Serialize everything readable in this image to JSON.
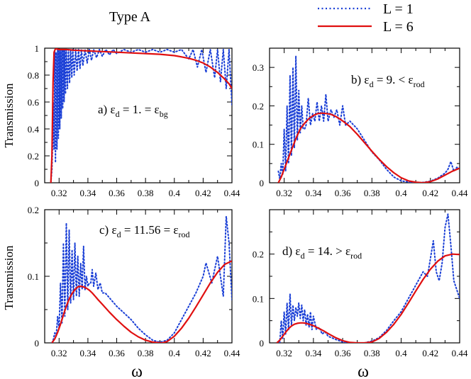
{
  "figure": {
    "title": "Type A",
    "ylabel": "Transmission",
    "xlabel": "ω",
    "legend": {
      "placement": "top-right",
      "entries": [
        {
          "label": "L = 1",
          "color": "#1a3fd6",
          "style": "dotted"
        },
        {
          "label": "L = 6",
          "color": "#e01010",
          "style": "solid"
        }
      ]
    }
  },
  "chart_data": [
    {
      "id": "a",
      "type": "line",
      "annotation": {
        "prefix": "a) ε",
        "sub1": "d",
        "mid": " = 1. = ε",
        "sub2": "bg"
      },
      "xlim": [
        0.31,
        0.44
      ],
      "ylim": [
        0,
        1
      ],
      "xticks": [
        0.32,
        0.34,
        0.36,
        0.38,
        0.4,
        0.42,
        0.44
      ],
      "yticks": [
        0,
        0.2,
        0.4,
        0.6,
        0.8,
        1
      ],
      "ytick_labels": [
        "0",
        "0.2",
        "0.4",
        "0.6",
        "0.8",
        "1"
      ],
      "xtick_labels": [
        "0.32",
        "0.34",
        "0.36",
        "0.38",
        "0.4",
        "0.42",
        "0.44"
      ],
      "series": [
        {
          "name": "L = 1",
          "color": "#1a3fd6",
          "style": "dotted",
          "x": [
            0.3143,
            0.315,
            0.3155,
            0.316,
            0.3165,
            0.317,
            0.3175,
            0.318,
            0.3185,
            0.319,
            0.3195,
            0.32,
            0.3205,
            0.321,
            0.3215,
            0.322,
            0.3225,
            0.323,
            0.3235,
            0.324,
            0.3245,
            0.325,
            0.3258,
            0.3265,
            0.3273,
            0.328,
            0.3288,
            0.3295,
            0.3305,
            0.3315,
            0.3325,
            0.3335,
            0.3345,
            0.3355,
            0.3365,
            0.338,
            0.3395,
            0.341,
            0.3425,
            0.344,
            0.346,
            0.348,
            0.35,
            0.3525,
            0.355,
            0.3575,
            0.36,
            0.365,
            0.37,
            0.375,
            0.38,
            0.385,
            0.39,
            0.395,
            0.4,
            0.405,
            0.41,
            0.413,
            0.416,
            0.419,
            0.422,
            0.425,
            0.428,
            0.43,
            0.432,
            0.434,
            0.436,
            0.438,
            0.44
          ],
          "y": [
            0,
            0.1,
            0.3,
            0.6,
            0.25,
            0.98,
            0.15,
            0.97,
            0.25,
            0.99,
            0.33,
            0.98,
            0.4,
            0.99,
            0.48,
            0.99,
            0.55,
            0.99,
            0.6,
            0.99,
            0.66,
            0.99,
            0.7,
            0.99,
            0.74,
            0.99,
            0.78,
            0.99,
            0.8,
            0.99,
            0.83,
            0.99,
            0.85,
            0.99,
            0.87,
            0.99,
            0.89,
            0.99,
            0.91,
            0.99,
            0.93,
            0.99,
            0.94,
            0.99,
            0.95,
            0.99,
            0.96,
            0.99,
            0.97,
            0.99,
            0.97,
            0.99,
            0.97,
            0.99,
            0.97,
            0.99,
            0.92,
            0.99,
            0.86,
            0.99,
            0.82,
            0.99,
            0.78,
            0.99,
            0.75,
            0.99,
            0.7,
            0.99,
            0.58
          ]
        },
        {
          "name": "L = 6",
          "color": "#e01010",
          "style": "solid",
          "x": [
            0.3143,
            0.315,
            0.3158,
            0.3165,
            0.3172,
            0.318,
            0.32,
            0.325,
            0.33,
            0.34,
            0.35,
            0.36,
            0.37,
            0.38,
            0.39,
            0.4,
            0.405,
            0.41,
            0.415,
            0.42,
            0.425,
            0.43,
            0.435,
            0.438,
            0.44
          ],
          "y": [
            0,
            0.2,
            0.75,
            0.97,
            0.99,
            0.995,
            0.99,
            0.99,
            0.985,
            0.98,
            0.975,
            0.97,
            0.965,
            0.96,
            0.955,
            0.945,
            0.935,
            0.925,
            0.91,
            0.89,
            0.86,
            0.82,
            0.77,
            0.735,
            0.7
          ]
        }
      ]
    },
    {
      "id": "b",
      "type": "line",
      "annotation": {
        "prefix": "b) ε",
        "sub1": "d",
        "mid": " = 9. < ε",
        "sub2": "rod"
      },
      "xlim": [
        0.31,
        0.44
      ],
      "ylim": [
        0,
        0.35
      ],
      "xticks": [
        0.32,
        0.34,
        0.36,
        0.38,
        0.4,
        0.42,
        0.44
      ],
      "yticks": [
        0,
        0.1,
        0.2,
        0.3
      ],
      "ytick_labels": [
        "0",
        "0.1",
        "0.2",
        "0.3"
      ],
      "xtick_labels": [
        "0.32",
        "0.34",
        "0.36",
        "0.38",
        "0.4",
        "0.42",
        "0.44"
      ],
      "series": [
        {
          "name": "L = 1",
          "color": "#1a3fd6",
          "style": "dotted",
          "x": [
            0.316,
            0.317,
            0.318,
            0.319,
            0.32,
            0.321,
            0.322,
            0.323,
            0.324,
            0.325,
            0.326,
            0.327,
            0.328,
            0.329,
            0.33,
            0.331,
            0.332,
            0.333,
            0.334,
            0.335,
            0.3365,
            0.338,
            0.3395,
            0.341,
            0.3425,
            0.344,
            0.3455,
            0.347,
            0.3485,
            0.35,
            0.352,
            0.354,
            0.356,
            0.358,
            0.36,
            0.362,
            0.365,
            0.37,
            0.375,
            0.38,
            0.385,
            0.39,
            0.395,
            0.4,
            0.405,
            0.41,
            0.415,
            0.42,
            0.425,
            0.43,
            0.432,
            0.434,
            0.436,
            0.438,
            0.44
          ],
          "y": [
            0.03,
            0.01,
            0.05,
            0.02,
            0.14,
            0.03,
            0.2,
            0.05,
            0.28,
            0.07,
            0.3,
            0.09,
            0.33,
            0.11,
            0.24,
            0.13,
            0.2,
            0.14,
            0.14,
            0.15,
            0.22,
            0.15,
            0.18,
            0.16,
            0.21,
            0.16,
            0.2,
            0.16,
            0.23,
            0.16,
            0.19,
            0.17,
            0.19,
            0.15,
            0.2,
            0.15,
            0.16,
            0.14,
            0.11,
            0.08,
            0.06,
            0.035,
            0.015,
            0.005,
            0.002,
            0.0,
            0.001,
            0.004,
            0.012,
            0.025,
            0.035,
            0.055,
            0.03,
            0.04,
            0.038
          ]
        },
        {
          "name": "L = 6",
          "color": "#e01010",
          "style": "solid",
          "x": [
            0.316,
            0.318,
            0.32,
            0.322,
            0.325,
            0.328,
            0.331,
            0.334,
            0.337,
            0.34,
            0.343,
            0.346,
            0.349,
            0.352,
            0.355,
            0.358,
            0.361,
            0.365,
            0.37,
            0.375,
            0.38,
            0.385,
            0.39,
            0.395,
            0.4,
            0.405,
            0.41,
            0.415,
            0.42,
            0.425,
            0.43,
            0.435,
            0.44
          ],
          "y": [
            0.0,
            0.015,
            0.035,
            0.055,
            0.085,
            0.115,
            0.14,
            0.155,
            0.167,
            0.175,
            0.18,
            0.181,
            0.18,
            0.178,
            0.173,
            0.166,
            0.158,
            0.146,
            0.126,
            0.104,
            0.082,
            0.061,
            0.042,
            0.026,
            0.013,
            0.005,
            0.0015,
            0.0,
            0.003,
            0.01,
            0.02,
            0.03,
            0.038
          ]
        }
      ]
    },
    {
      "id": "c",
      "type": "line",
      "annotation": {
        "prefix": "c) ε",
        "sub1": "d",
        "mid": " = 11.56 = ε",
        "sub2": "rod"
      },
      "xlim": [
        0.31,
        0.44
      ],
      "ylim": [
        0,
        0.2
      ],
      "xticks": [
        0.32,
        0.34,
        0.36,
        0.38,
        0.4,
        0.42,
        0.44
      ],
      "yticks": [
        0,
        0.1,
        0.2
      ],
      "ytick_labels": [
        "0",
        "0.1",
        "0.2"
      ],
      "xtick_labels": [
        "0.32",
        "0.34",
        "0.36",
        "0.38",
        "0.4",
        "0.42",
        "0.44"
      ],
      "series": [
        {
          "name": "L = 1",
          "color": "#1a3fd6",
          "style": "dotted",
          "x": [
            0.315,
            0.316,
            0.317,
            0.318,
            0.319,
            0.32,
            0.321,
            0.322,
            0.323,
            0.324,
            0.325,
            0.326,
            0.327,
            0.328,
            0.329,
            0.33,
            0.331,
            0.332,
            0.333,
            0.334,
            0.335,
            0.336,
            0.337,
            0.338,
            0.339,
            0.34,
            0.341,
            0.342,
            0.343,
            0.344,
            0.3455,
            0.347,
            0.3485,
            0.35,
            0.352,
            0.354,
            0.356,
            0.358,
            0.36,
            0.365,
            0.37,
            0.375,
            0.38,
            0.385,
            0.39,
            0.395,
            0.4,
            0.405,
            0.41,
            0.415,
            0.42,
            0.422,
            0.424,
            0.426,
            0.428,
            0.43,
            0.432,
            0.434,
            0.436,
            0.438,
            0.44
          ],
          "y": [
            0.0,
            0.005,
            0.015,
            0.01,
            0.04,
            0.02,
            0.09,
            0.03,
            0.15,
            0.04,
            0.18,
            0.05,
            0.17,
            0.06,
            0.14,
            0.065,
            0.15,
            0.07,
            0.13,
            0.07,
            0.12,
            0.08,
            0.145,
            0.08,
            0.1,
            0.085,
            0.09,
            0.09,
            0.11,
            0.085,
            0.105,
            0.08,
            0.09,
            0.075,
            0.075,
            0.07,
            0.065,
            0.06,
            0.055,
            0.045,
            0.035,
            0.022,
            0.012,
            0.004,
            0.001,
            0.004,
            0.015,
            0.035,
            0.055,
            0.075,
            0.1,
            0.12,
            0.105,
            0.09,
            0.11,
            0.13,
            0.1,
            0.07,
            0.19,
            0.15,
            0.065
          ]
        },
        {
          "name": "L = 6",
          "color": "#e01010",
          "style": "solid",
          "x": [
            0.315,
            0.317,
            0.319,
            0.321,
            0.323,
            0.325,
            0.327,
            0.329,
            0.331,
            0.333,
            0.335,
            0.337,
            0.339,
            0.341,
            0.343,
            0.345,
            0.347,
            0.35,
            0.355,
            0.36,
            0.365,
            0.37,
            0.375,
            0.38,
            0.385,
            0.39,
            0.392,
            0.395,
            0.4,
            0.405,
            0.41,
            0.415,
            0.42,
            0.425,
            0.43,
            0.435,
            0.44
          ],
          "y": [
            0.0,
            0.006,
            0.016,
            0.028,
            0.042,
            0.055,
            0.066,
            0.074,
            0.08,
            0.084,
            0.085,
            0.084,
            0.082,
            0.079,
            0.075,
            0.07,
            0.065,
            0.058,
            0.046,
            0.035,
            0.025,
            0.016,
            0.009,
            0.004,
            0.0012,
            0.0,
            0.0002,
            0.002,
            0.01,
            0.022,
            0.037,
            0.054,
            0.072,
            0.09,
            0.106,
            0.118,
            0.123
          ]
        }
      ]
    },
    {
      "id": "d",
      "type": "line",
      "annotation": {
        "prefix": "d) ε",
        "sub1": "d",
        "mid": " = 14. > ε",
        "sub2": "rod"
      },
      "xlim": [
        0.31,
        0.44
      ],
      "ylim": [
        0,
        0.3
      ],
      "xticks": [
        0.32,
        0.34,
        0.36,
        0.38,
        0.4,
        0.42,
        0.44
      ],
      "yticks": [
        0,
        0.1,
        0.2
      ],
      "ytick_labels": [
        "0",
        "0.1",
        "0.2"
      ],
      "xtick_labels": [
        "0.32",
        "0.34",
        "0.36",
        "0.38",
        "0.4",
        "0.42",
        "0.44"
      ],
      "series": [
        {
          "name": "L = 1",
          "color": "#1a3fd6",
          "style": "dotted",
          "x": [
            0.317,
            0.318,
            0.319,
            0.32,
            0.321,
            0.322,
            0.323,
            0.324,
            0.325,
            0.326,
            0.327,
            0.328,
            0.329,
            0.33,
            0.331,
            0.332,
            0.333,
            0.334,
            0.335,
            0.336,
            0.337,
            0.338,
            0.339,
            0.34,
            0.342,
            0.344,
            0.346,
            0.348,
            0.35,
            0.355,
            0.36,
            0.365,
            0.37,
            0.375,
            0.38,
            0.385,
            0.39,
            0.395,
            0.4,
            0.405,
            0.41,
            0.415,
            0.418,
            0.42,
            0.422,
            0.424,
            0.426,
            0.428,
            0.43,
            0.432,
            0.434,
            0.436,
            0.438,
            0.44
          ],
          "y": [
            0.0,
            0.05,
            0.01,
            0.07,
            0.02,
            0.09,
            0.03,
            0.11,
            0.04,
            0.085,
            0.05,
            0.08,
            0.06,
            0.09,
            0.055,
            0.085,
            0.05,
            0.075,
            0.04,
            0.065,
            0.035,
            0.07,
            0.03,
            0.06,
            0.03,
            0.035,
            0.02,
            0.025,
            0.015,
            0.008,
            0.002,
            0.0,
            0.0,
            0.0,
            0.004,
            0.012,
            0.028,
            0.05,
            0.07,
            0.1,
            0.13,
            0.16,
            0.15,
            0.19,
            0.23,
            0.16,
            0.14,
            0.18,
            0.26,
            0.29,
            0.22,
            0.14,
            0.12,
            0.1
          ]
        },
        {
          "name": "L = 6",
          "color": "#e01010",
          "style": "solid",
          "x": [
            0.315,
            0.317,
            0.319,
            0.321,
            0.323,
            0.325,
            0.327,
            0.329,
            0.331,
            0.333,
            0.335,
            0.337,
            0.339,
            0.341,
            0.344,
            0.347,
            0.35,
            0.355,
            0.36,
            0.365,
            0.37,
            0.375,
            0.38,
            0.385,
            0.39,
            0.395,
            0.4,
            0.405,
            0.41,
            0.415,
            0.42,
            0.425,
            0.43,
            0.435,
            0.44
          ],
          "y": [
            0.0,
            0.006,
            0.015,
            0.024,
            0.032,
            0.038,
            0.042,
            0.044,
            0.045,
            0.045,
            0.044,
            0.042,
            0.04,
            0.037,
            0.032,
            0.027,
            0.021,
            0.012,
            0.005,
            0.001,
            0.0,
            0.0,
            0.002,
            0.01,
            0.024,
            0.042,
            0.064,
            0.09,
            0.117,
            0.143,
            0.166,
            0.184,
            0.196,
            0.2,
            0.199
          ]
        }
      ]
    }
  ]
}
